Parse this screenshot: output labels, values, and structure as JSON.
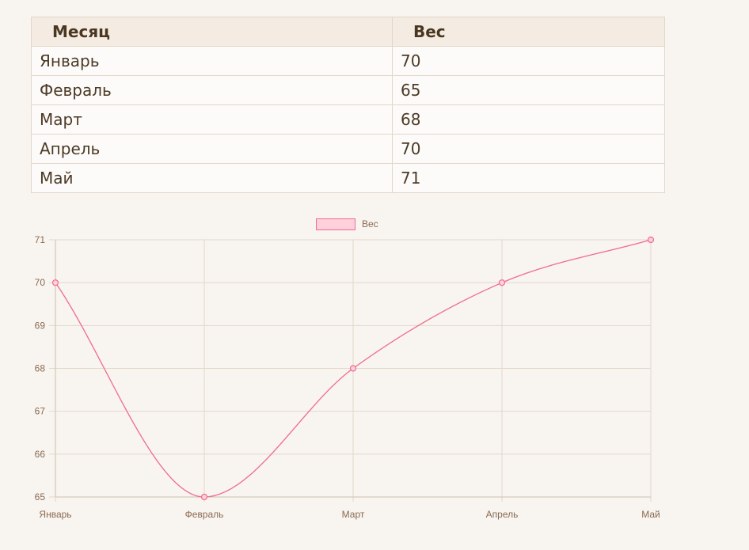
{
  "table": {
    "headers": [
      "Месяц",
      "Вес"
    ],
    "rows": [
      [
        "Январь",
        "70"
      ],
      [
        "Февраль",
        "65"
      ],
      [
        "Март",
        "68"
      ],
      [
        "Апрель",
        "70"
      ],
      [
        "Май",
        "71"
      ]
    ]
  },
  "chart_data": {
    "type": "line",
    "categories": [
      "Январь",
      "Февраль",
      "Март",
      "Апрель",
      "Май"
    ],
    "series": [
      {
        "name": "Вес",
        "values": [
          70,
          65,
          68,
          70,
          71
        ]
      }
    ],
    "title": "",
    "xlabel": "",
    "ylabel": "",
    "ylim": [
      65,
      71
    ],
    "yticks": [
      65,
      66,
      67,
      68,
      69,
      70,
      71
    ],
    "grid": true,
    "legend": "top",
    "colors": {
      "line": "#f06b8f",
      "fill": "#ffd1dc",
      "grid": "#e3d8ca",
      "tick_text": "#8a6b52"
    }
  }
}
